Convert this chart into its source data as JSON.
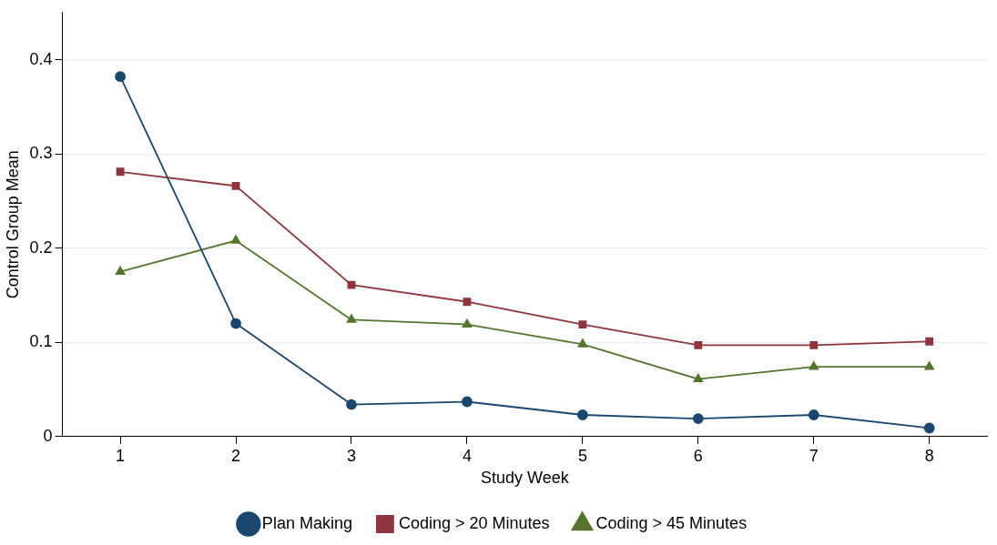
{
  "chart_data": {
    "type": "line",
    "xlabel": "Study Week",
    "ylabel": "Control Group Mean",
    "x": [
      1,
      2,
      3,
      4,
      5,
      6,
      7,
      8
    ],
    "xlim": [
      0.5,
      8.5
    ],
    "xticks": [
      1,
      2,
      3,
      4,
      5,
      6,
      7,
      8
    ],
    "ylim": [
      0,
      0.45
    ],
    "yticks": [
      0,
      0.1,
      0.2,
      0.3,
      0.4
    ],
    "grid": "y",
    "legend": "bottom",
    "series": [
      {
        "name": "Plan Making",
        "color": "#1a476f",
        "marker": "circle",
        "values": [
          0.382,
          0.12,
          0.034,
          0.037,
          0.023,
          0.019,
          0.023,
          0.009
        ]
      },
      {
        "name": "Coding > 20 Minutes",
        "color": "#90353b",
        "marker": "square",
        "values": [
          0.281,
          0.266,
          0.161,
          0.143,
          0.119,
          0.097,
          0.097,
          0.101
        ]
      },
      {
        "name": "Coding > 45 Minutes",
        "color": "#55752f",
        "marker": "triangle",
        "values": [
          0.175,
          0.208,
          0.124,
          0.119,
          0.098,
          0.061,
          0.074,
          0.074
        ]
      }
    ]
  }
}
